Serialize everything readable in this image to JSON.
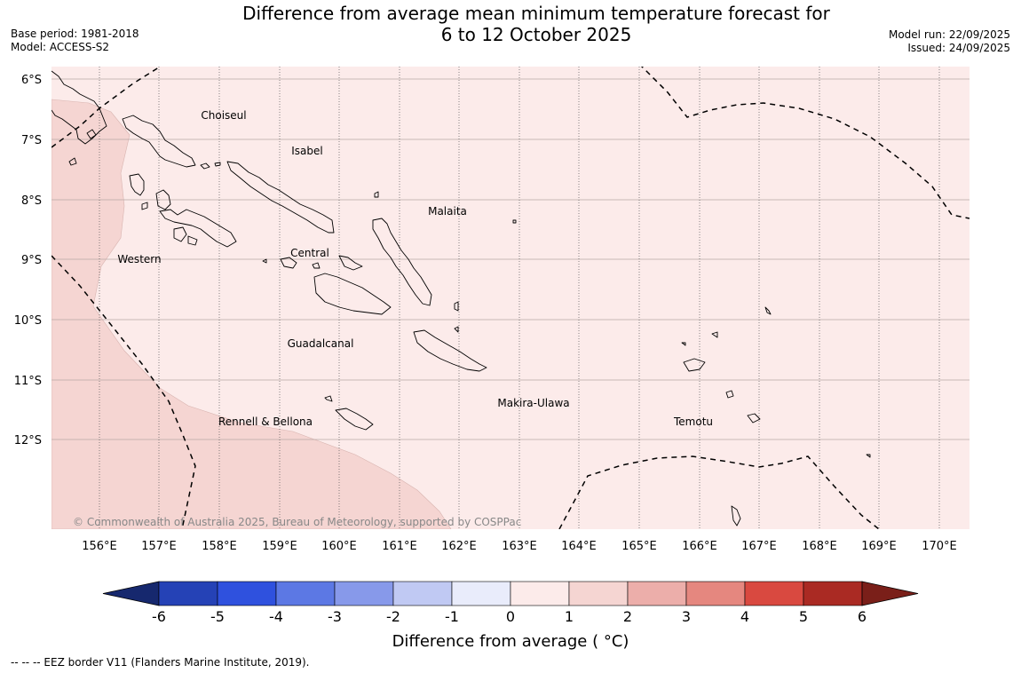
{
  "header": {
    "title_line1": "Difference from average mean minimum temperature forecast for",
    "title_line2": "6 to 12 October 2025",
    "base_period": "Base period: 1981-2018",
    "model": "Model: ACCESS-S2",
    "model_run": "Model run: 22/09/2025",
    "issued": "Issued: 24/09/2025"
  },
  "map": {
    "lat_labels": [
      "6°S",
      "7°S",
      "8°S",
      "9°S",
      "10°S",
      "11°S",
      "12°S"
    ],
    "lon_labels": [
      "156°E",
      "157°E",
      "158°E",
      "159°E",
      "160°E",
      "161°E",
      "162°E",
      "163°E",
      "164°E",
      "165°E",
      "166°E",
      "167°E",
      "168°E",
      "169°E",
      "170°E"
    ],
    "provinces": [
      "Choiseul",
      "Isabel",
      "Malaita",
      "Western",
      "Central",
      "Guadalcanal",
      "Makira-Ulawa",
      "Rennell & Bellona",
      "Temotu"
    ],
    "copyright": "© Commonwealth of Australia 2025, Bureau of Meteorology, supported by COSPPac",
    "colors": {
      "anomaly_0_1": "#fcebea",
      "anomaly_1_2": "#f5d5d2",
      "coast": "#000000"
    }
  },
  "colorbar": {
    "title": "Difference from average ( °C)",
    "ticks": [
      "-6",
      "-5",
      "-4",
      "-3",
      "-2",
      "-1",
      "0",
      "1",
      "2",
      "3",
      "4",
      "5",
      "6"
    ],
    "colors": [
      "#16286e",
      "#2542b6",
      "#2f51de",
      "#5c78e4",
      "#8799ea",
      "#c0c9f3",
      "#e9ecfb",
      "#fcebea",
      "#f5d5d2",
      "#ecaeaa",
      "#e5877f",
      "#d94940",
      "#aa2a23",
      "#7a1f19"
    ]
  },
  "footnote": "--  --  -- EEZ border V11 (Flanders Marine Institute, 2019)."
}
